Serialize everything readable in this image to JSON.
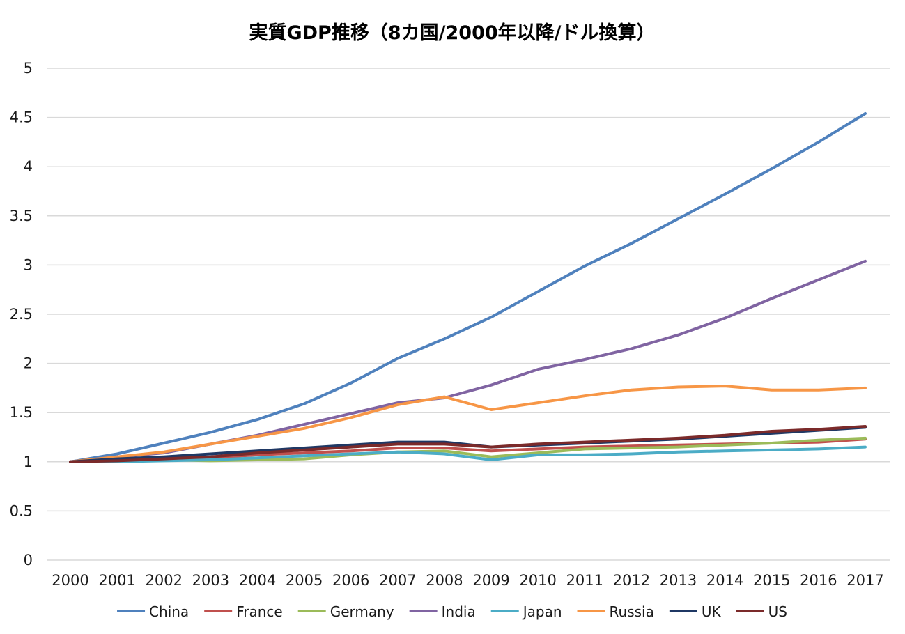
{
  "chart_data": {
    "type": "line",
    "title": "実質GDP推移（8カ国/2000年以降/ドル換算）",
    "xlabel": "",
    "ylabel": "",
    "ylim": [
      0,
      5
    ],
    "y_ticks": [
      "0",
      "0.5",
      "1",
      "1.5",
      "2",
      "2.5",
      "3",
      "3.5",
      "4",
      "4.5",
      "5"
    ],
    "grid": true,
    "legend_position": "bottom",
    "categories": [
      "2000",
      "2001",
      "2002",
      "2003",
      "2004",
      "2005",
      "2006",
      "2007",
      "2008",
      "2009",
      "2010",
      "2011",
      "2012",
      "2013",
      "2014",
      "2015",
      "2016",
      "2017"
    ],
    "series": [
      {
        "name": "China",
        "color": "#4f81bd",
        "values": [
          1.0,
          1.08,
          1.19,
          1.3,
          1.43,
          1.59,
          1.8,
          2.05,
          2.25,
          2.47,
          2.73,
          2.99,
          3.22,
          3.47,
          3.72,
          3.98,
          4.25,
          4.54
        ]
      },
      {
        "name": "France",
        "color": "#c0504d",
        "values": [
          1.0,
          1.02,
          1.03,
          1.04,
          1.07,
          1.09,
          1.11,
          1.14,
          1.14,
          1.11,
          1.13,
          1.15,
          1.16,
          1.17,
          1.18,
          1.19,
          1.2,
          1.23
        ]
      },
      {
        "name": "Germany",
        "color": "#9bbb59",
        "values": [
          1.0,
          1.02,
          1.02,
          1.01,
          1.02,
          1.03,
          1.07,
          1.1,
          1.11,
          1.05,
          1.09,
          1.13,
          1.14,
          1.15,
          1.17,
          1.19,
          1.22,
          1.24
        ]
      },
      {
        "name": "India",
        "color": "#8064a2",
        "values": [
          1.0,
          1.05,
          1.09,
          1.18,
          1.27,
          1.38,
          1.49,
          1.6,
          1.65,
          1.78,
          1.94,
          2.04,
          2.15,
          2.29,
          2.46,
          2.66,
          2.85,
          3.04
        ]
      },
      {
        "name": "Japan",
        "color": "#4bacc6",
        "values": [
          1.0,
          1.0,
          1.01,
          1.02,
          1.04,
          1.06,
          1.08,
          1.1,
          1.08,
          1.02,
          1.07,
          1.07,
          1.08,
          1.1,
          1.11,
          1.12,
          1.13,
          1.15
        ]
      },
      {
        "name": "Russia",
        "color": "#f79646",
        "values": [
          1.0,
          1.05,
          1.1,
          1.18,
          1.26,
          1.34,
          1.45,
          1.58,
          1.66,
          1.53,
          1.6,
          1.67,
          1.73,
          1.76,
          1.77,
          1.73,
          1.73,
          1.75
        ]
      },
      {
        "name": "UK",
        "color": "#1f3864",
        "values": [
          1.0,
          1.03,
          1.05,
          1.08,
          1.11,
          1.14,
          1.17,
          1.2,
          1.2,
          1.15,
          1.17,
          1.19,
          1.21,
          1.23,
          1.26,
          1.29,
          1.32,
          1.35
        ]
      },
      {
        "name": "US",
        "color": "#7b2a2a",
        "values": [
          1.0,
          1.01,
          1.03,
          1.05,
          1.09,
          1.12,
          1.15,
          1.18,
          1.18,
          1.15,
          1.18,
          1.2,
          1.22,
          1.24,
          1.27,
          1.31,
          1.33,
          1.36
        ]
      }
    ]
  }
}
